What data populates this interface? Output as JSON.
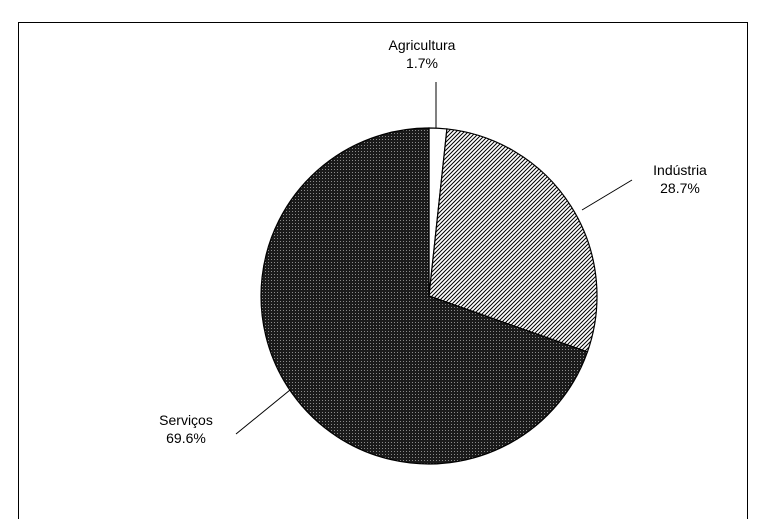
{
  "chart_data": {
    "type": "pie",
    "title": "",
    "slices": [
      {
        "label": "Agricultura",
        "value": 1.7,
        "value_label": "1.7%",
        "pattern": "solid-white"
      },
      {
        "label": "Indústria",
        "value": 28.7,
        "value_label": "28.7%",
        "pattern": "diagonal-hatch"
      },
      {
        "label": "Serviços",
        "value": 69.6,
        "value_label": "69.6%",
        "pattern": "dense-dots"
      }
    ],
    "start": "top, clockwise",
    "legend": "none",
    "colors": {
      "stroke": "#000000",
      "background": "#ffffff"
    }
  }
}
